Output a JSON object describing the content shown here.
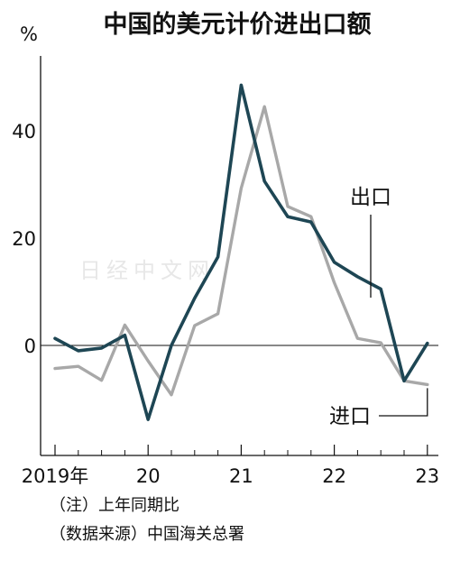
{
  "watermark": "日经中文网",
  "chart_data": {
    "type": "line",
    "title": "中国的美元计价进出口额",
    "ylabel": "%",
    "ylim": [
      -20,
      50
    ],
    "yticks": [
      0,
      20,
      40
    ],
    "xticks": [
      {
        "label": "2019年",
        "x": 0
      },
      {
        "label": "20",
        "x": 4
      },
      {
        "label": "21",
        "x": 8
      },
      {
        "label": "22",
        "x": 12
      },
      {
        "label": "23",
        "x": 16
      }
    ],
    "x": [
      0,
      1,
      2,
      3,
      4,
      5,
      6,
      7,
      8,
      9,
      10,
      11,
      12,
      13,
      14,
      15,
      16
    ],
    "series": [
      {
        "name": "出口",
        "color": "#1e4654",
        "values": [
          1.3,
          -1,
          -0.5,
          1.9,
          -13.8,
          0,
          8.8,
          16.5,
          48.5,
          30.6,
          24,
          23,
          15.5,
          12.8,
          10.5,
          -6.6,
          0.4
        ]
      },
      {
        "name": "进口",
        "color": "#a8a8a8",
        "values": [
          -4.3,
          -3.9,
          -6.5,
          3.8,
          -2.9,
          -9.2,
          3.7,
          5.9,
          29.3,
          44.5,
          25.9,
          24,
          11.7,
          1.3,
          0.5,
          -6.6,
          -7.3
        ]
      }
    ],
    "notes": [
      "（注）上年同期比",
      "（数据来源）中国海关总署"
    ]
  }
}
